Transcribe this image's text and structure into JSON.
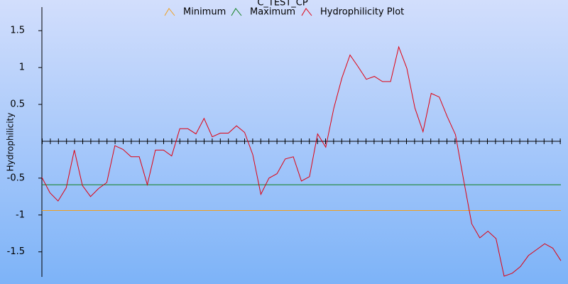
{
  "chart_data": {
    "type": "line",
    "title": "C_TEST_CP",
    "y_label": "Hydrophilicity",
    "ylim": [
      -1.84,
      1.82
    ],
    "yticks": [
      -1.5,
      -1,
      -0.5,
      0.5,
      1,
      1.5
    ],
    "legend": "top",
    "series": [
      {
        "name": "Minimum",
        "color": "#f0a020",
        "value": -0.94
      },
      {
        "name": "Maximum",
        "color": "#108020",
        "value": -0.59
      },
      {
        "name": "Hydrophilicity Plot",
        "color": "#e00010",
        "values": [
          -0.49,
          -0.7,
          -0.81,
          -0.63,
          -0.12,
          -0.6,
          -0.75,
          -0.64,
          -0.56,
          -0.06,
          -0.11,
          -0.21,
          -0.21,
          -0.59,
          -0.12,
          -0.12,
          -0.2,
          0.17,
          0.17,
          0.1,
          0.31,
          0.06,
          0.11,
          0.11,
          0.21,
          0.12,
          -0.18,
          -0.72,
          -0.5,
          -0.44,
          -0.24,
          -0.21,
          -0.54,
          -0.48,
          0.1,
          -0.08,
          0.45,
          0.86,
          1.17,
          1.01,
          0.84,
          0.88,
          0.81,
          0.81,
          1.28,
          0.99,
          0.45,
          0.13,
          0.65,
          0.6,
          0.33,
          0.09,
          -0.52,
          -1.12,
          -1.31,
          -1.22,
          -1.32,
          -1.83,
          -1.79,
          -1.7,
          -1.55,
          -1.47,
          -1.39,
          -1.45,
          -1.62
        ]
      }
    ]
  }
}
